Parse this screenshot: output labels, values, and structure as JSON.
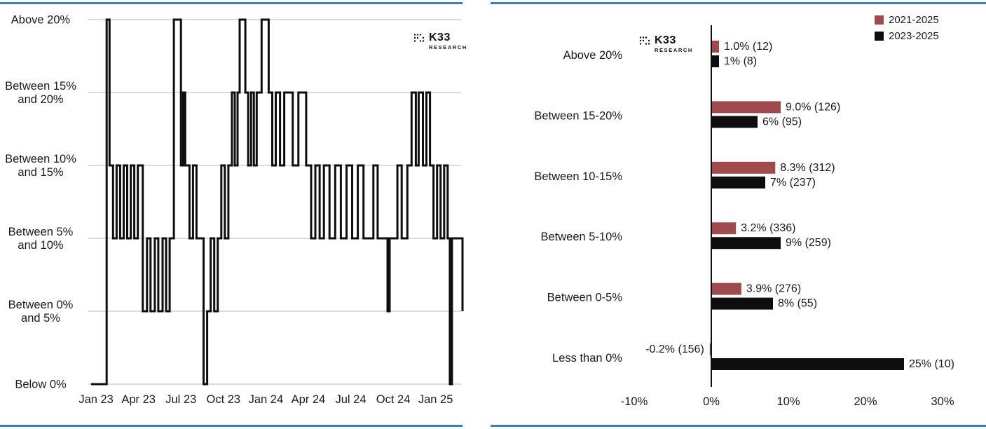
{
  "branding": {
    "name": "K33",
    "sub": "RESEARCH"
  },
  "colors": {
    "rule_blue": "#3a7cbe",
    "text": "#1a1a1a",
    "grid": "#c8c8c8",
    "series_red": "#9f4a4c",
    "series_black": "#0e0e0e"
  },
  "chart_data": [
    {
      "id": "ath-distance-band-timeline",
      "type": "line",
      "subtype": "step",
      "title": "",
      "line_color": "#0e0e0e",
      "grid": true,
      "bands": [
        {
          "value": 0,
          "label": "Below 0%",
          "display": [
            "Below 0%"
          ]
        },
        {
          "value": 1,
          "label": "Between 0% and 5%",
          "display": [
            "Between 0%",
            "and 5%"
          ]
        },
        {
          "value": 2,
          "label": "Between 5% and 10%",
          "display": [
            "Between 5%",
            "and 10%"
          ]
        },
        {
          "value": 3,
          "label": "Between 10% and 15%",
          "display": [
            "Between 10%",
            "and 15%"
          ]
        },
        {
          "value": 4,
          "label": "Between 15% and 20%",
          "display": [
            "Between 15%",
            "and 20%"
          ]
        },
        {
          "value": 5,
          "label": "Above 20%",
          "display": [
            "Above 20%"
          ]
        }
      ],
      "x_ticks": [
        {
          "month": 0,
          "label": "Jan 23"
        },
        {
          "month": 3,
          "label": "Apr 23"
        },
        {
          "month": 6,
          "label": "Jul 23"
        },
        {
          "month": 9,
          "label": "Oct 23"
        },
        {
          "month": 12,
          "label": "Jan 24"
        },
        {
          "month": 15,
          "label": "Apr 24"
        },
        {
          "month": 18,
          "label": "Jul 24"
        },
        {
          "month": 21,
          "label": "Oct 24"
        },
        {
          "month": 24,
          "label": "Jan 25"
        }
      ],
      "x_range": [
        -0.35,
        25.9
      ],
      "points": [
        [
          -0.35,
          0
        ],
        [
          0.75,
          5
        ],
        [
          0.95,
          3
        ],
        [
          1.2,
          2
        ],
        [
          1.45,
          3
        ],
        [
          1.7,
          2
        ],
        [
          1.95,
          3
        ],
        [
          2.2,
          2
        ],
        [
          2.45,
          3
        ],
        [
          2.7,
          2
        ],
        [
          2.95,
          3
        ],
        [
          3.3,
          1
        ],
        [
          3.6,
          2
        ],
        [
          3.85,
          1
        ],
        [
          4.15,
          2
        ],
        [
          4.4,
          1
        ],
        [
          4.7,
          2
        ],
        [
          4.95,
          1
        ],
        [
          5.2,
          2
        ],
        [
          5.5,
          5
        ],
        [
          6.0,
          3
        ],
        [
          6.15,
          4
        ],
        [
          6.3,
          3
        ],
        [
          6.6,
          2
        ],
        [
          6.85,
          3
        ],
        [
          7.1,
          2
        ],
        [
          7.6,
          0
        ],
        [
          7.85,
          1
        ],
        [
          8.1,
          2
        ],
        [
          8.35,
          1
        ],
        [
          8.6,
          2
        ],
        [
          8.85,
          3
        ],
        [
          9.1,
          2
        ],
        [
          9.35,
          3
        ],
        [
          9.6,
          4
        ],
        [
          9.8,
          3
        ],
        [
          10.0,
          4
        ],
        [
          10.15,
          5
        ],
        [
          10.55,
          4
        ],
        [
          10.75,
          3
        ],
        [
          10.95,
          4
        ],
        [
          11.15,
          3
        ],
        [
          11.35,
          4
        ],
        [
          11.7,
          5
        ],
        [
          12.2,
          4
        ],
        [
          12.45,
          3
        ],
        [
          12.7,
          4
        ],
        [
          13.0,
          3
        ],
        [
          13.3,
          4
        ],
        [
          13.9,
          3
        ],
        [
          14.3,
          4
        ],
        [
          14.85,
          3
        ],
        [
          15.2,
          2
        ],
        [
          15.5,
          3
        ],
        [
          15.8,
          2
        ],
        [
          16.1,
          3
        ],
        [
          16.5,
          2
        ],
        [
          16.9,
          3
        ],
        [
          17.3,
          2
        ],
        [
          17.7,
          3
        ],
        [
          18.1,
          2
        ],
        [
          18.5,
          3
        ],
        [
          18.9,
          2
        ],
        [
          19.6,
          3
        ],
        [
          19.9,
          2
        ],
        [
          20.6,
          1
        ],
        [
          20.75,
          2
        ],
        [
          21.3,
          3
        ],
        [
          21.6,
          2
        ],
        [
          22.0,
          3
        ],
        [
          22.3,
          4
        ],
        [
          22.6,
          3
        ],
        [
          22.8,
          4
        ],
        [
          23.1,
          3
        ],
        [
          23.35,
          4
        ],
        [
          23.6,
          3
        ],
        [
          23.85,
          2
        ],
        [
          24.1,
          3
        ],
        [
          24.35,
          2
        ],
        [
          24.6,
          3
        ],
        [
          24.85,
          2
        ],
        [
          25.0,
          0
        ],
        [
          25.15,
          2
        ],
        [
          25.5,
          2
        ],
        [
          25.9,
          1
        ]
      ]
    },
    {
      "id": "ath-distance-band-distribution",
      "type": "bar",
      "orientation": "horizontal",
      "title": "",
      "categories": [
        "Above 20%",
        "Between 15-20%",
        "Between 10-15%",
        "Between 5-10%",
        "Between 0-5%",
        "Less than 0%"
      ],
      "series": [
        {
          "name": "2021-2025",
          "color": "#9f4a4c",
          "values": [
            1.0,
            9.0,
            8.3,
            3.2,
            3.9,
            -0.2
          ],
          "counts": [
            12,
            126,
            312,
            336,
            276,
            156
          ],
          "labels": [
            "1.0% (12)",
            "9.0% (126)",
            "8.3% (312)",
            "3.2% (336)",
            "3.9% (276)",
            "-0.2% (156)"
          ]
        },
        {
          "name": "2023-2025",
          "color": "#0e0e0e",
          "values": [
            1,
            6,
            7,
            9,
            8,
            25
          ],
          "counts": [
            8,
            95,
            237,
            259,
            55,
            10
          ],
          "labels": [
            "1% (8)",
            "6% (95)",
            "7% (237)",
            "9% (259)",
            "8% (55)",
            "25% (10)"
          ]
        }
      ],
      "x_ticks": [
        {
          "value": -10,
          "label": "-10%"
        },
        {
          "value": 0,
          "label": "0%"
        },
        {
          "value": 10,
          "label": "10%"
        },
        {
          "value": 20,
          "label": "20%"
        },
        {
          "value": 30,
          "label": "30%"
        }
      ],
      "xlim": [
        -13,
        33
      ],
      "legend_position": "top-right"
    }
  ]
}
